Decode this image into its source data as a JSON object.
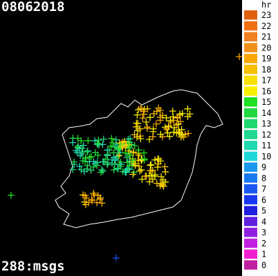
{
  "header": {
    "title": "08062018"
  },
  "footer": {
    "count": "288:msgs"
  },
  "legend": {
    "title": "hr",
    "entries": [
      {
        "label": "23",
        "color": "#e06010"
      },
      {
        "label": "22",
        "color": "#f07010"
      },
      {
        "label": "21",
        "color": "#f08020"
      },
      {
        "label": "20",
        "color": "#f09018"
      },
      {
        "label": "19",
        "color": "#f8a800"
      },
      {
        "label": "18",
        "color": "#f8c000"
      },
      {
        "label": "17",
        "color": "#f8e000"
      },
      {
        "label": "16",
        "color": "#f8f000"
      },
      {
        "label": "15",
        "color": "#20e020"
      },
      {
        "label": "14",
        "color": "#20d840"
      },
      {
        "label": "13",
        "color": "#20d870"
      },
      {
        "label": "12",
        "color": "#20d890"
      },
      {
        "label": "11",
        "color": "#20d8b0"
      },
      {
        "label": "10",
        "color": "#20d8d8"
      },
      {
        "label": "9",
        "color": "#1898f0"
      },
      {
        "label": "8",
        "color": "#1878f0"
      },
      {
        "label": "7",
        "color": "#1858f0"
      },
      {
        "label": "6",
        "color": "#1838f0"
      },
      {
        "label": "5",
        "color": "#2020e0"
      },
      {
        "label": "4",
        "color": "#6020e0"
      },
      {
        "label": "3",
        "color": "#9020e0"
      },
      {
        "label": "2",
        "color": "#c020e0"
      },
      {
        "label": "1",
        "color": "#f020d0"
      },
      {
        "label": "0",
        "color": "#c020a0"
      }
    ]
  }
}
